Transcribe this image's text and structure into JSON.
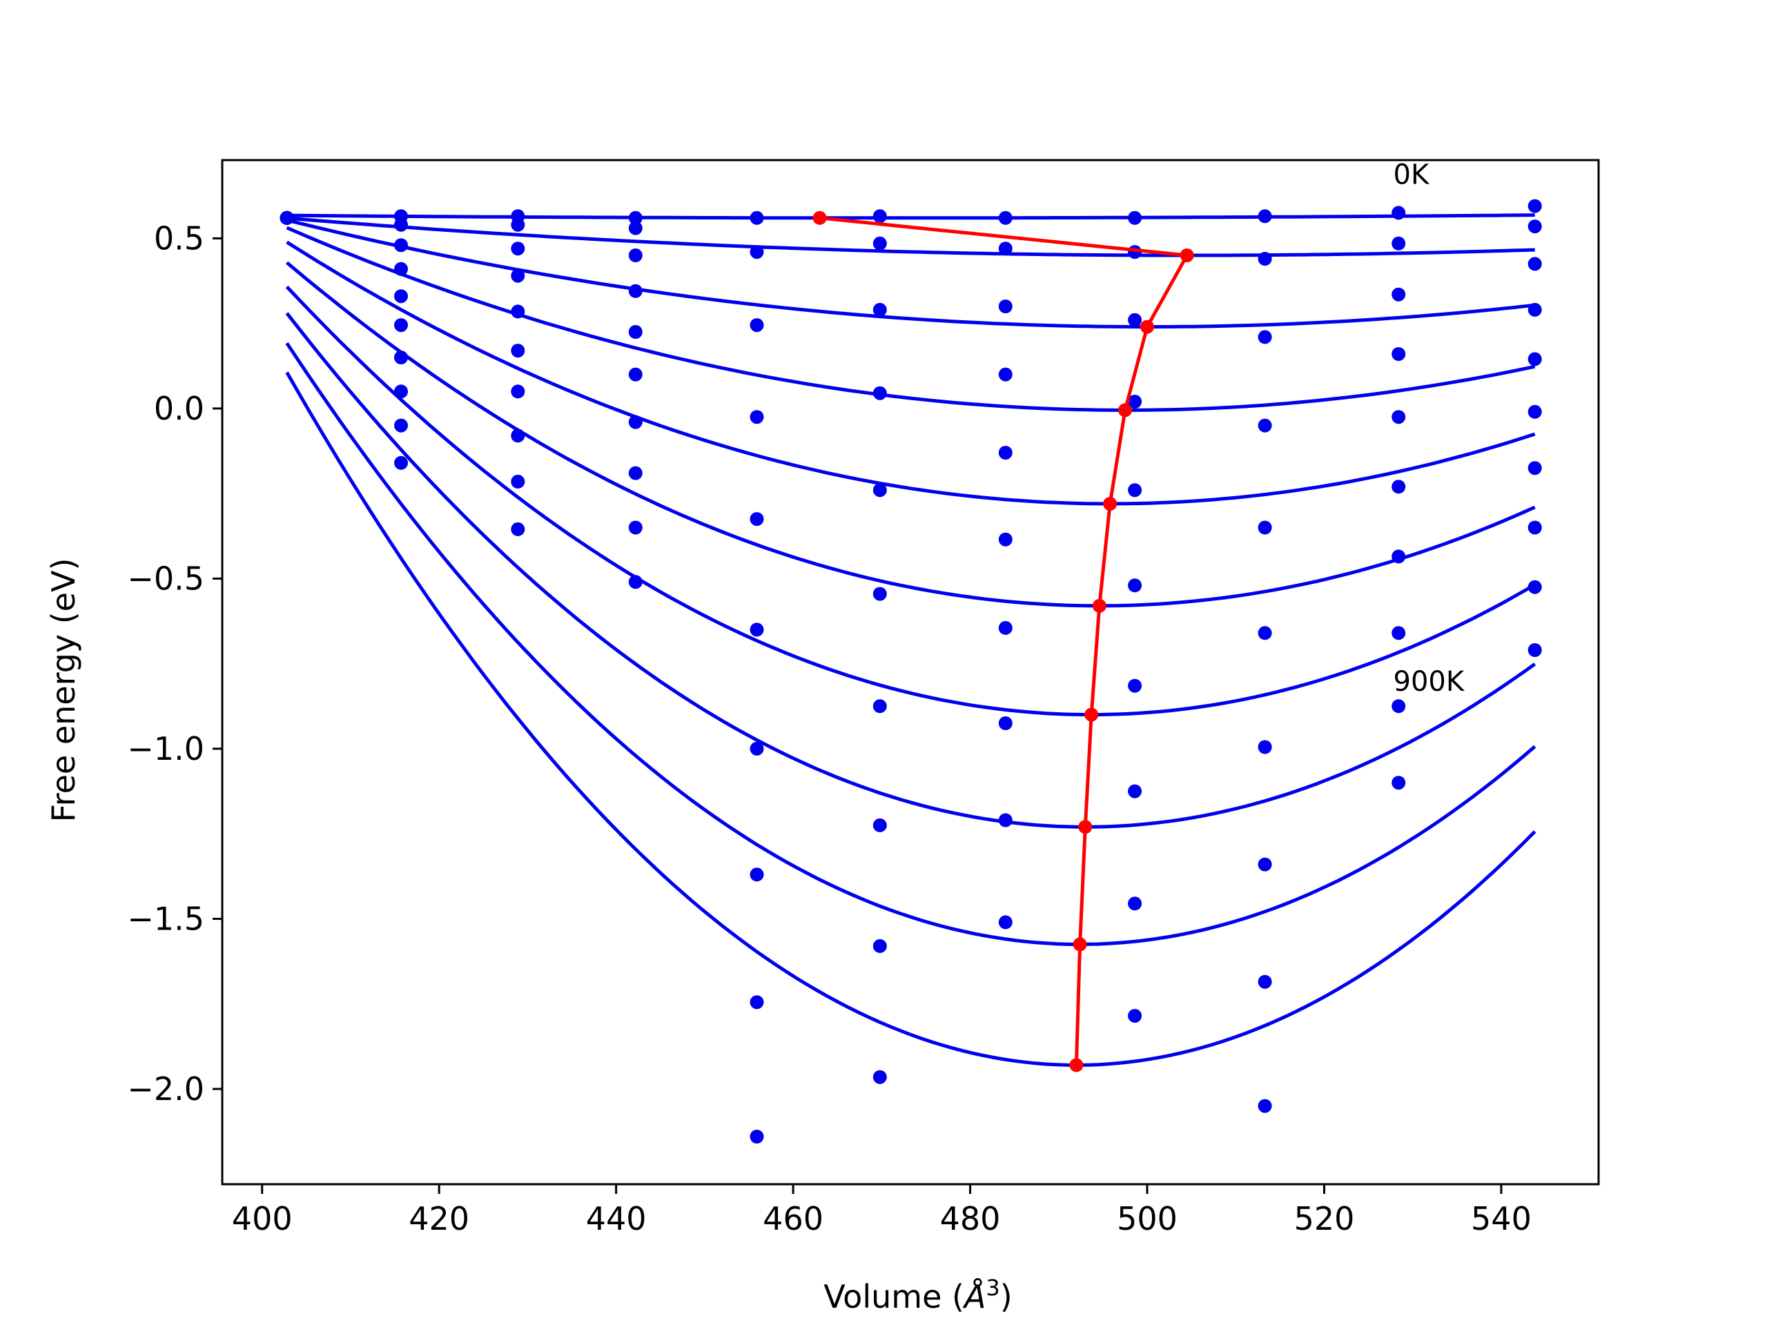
{
  "chart_data": {
    "type": "line",
    "title": "",
    "xlabel": "Volume (",
    "xlabel_symbol": "Å",
    "xlabel_sup": "3",
    "xlabel_close": ")",
    "ylabel": "Free energy (eV)",
    "xlim": [
      395.5,
      551
    ],
    "ylim": [
      -2.28,
      0.73
    ],
    "xticks": [
      400,
      420,
      440,
      460,
      480,
      500,
      520,
      540
    ],
    "xtick_labels": [
      "400",
      "420",
      "440",
      "460",
      "480",
      "500",
      "520",
      "540"
    ],
    "yticks": [
      0.5,
      0.0,
      -0.5,
      -1.0,
      -1.5,
      -2.0
    ],
    "ytick_labels": [
      "0.5",
      "0.0",
      "−0.5",
      "−1.0",
      "−1.5",
      "−2.0"
    ],
    "grid": false,
    "curve_color": "#0000ee",
    "point_color": "#0000ee",
    "min_line_color": "#ff0000",
    "volumes": [
      402.8,
      415.7,
      428.9,
      442.2,
      455.9,
      469.8,
      484.0,
      498.6,
      513.3,
      528.4,
      543.8
    ],
    "series": [
      {
        "values": [
          0.56,
          0.565,
          0.565,
          0.56,
          0.56,
          0.565,
          0.56,
          0.56,
          0.565,
          0.575,
          0.595
        ]
      },
      {
        "values": [
          0.56,
          0.54,
          0.54,
          0.53,
          0.46,
          0.485,
          0.47,
          0.46,
          0.44,
          0.485,
          0.535
        ]
      },
      {
        "values": [
          0.56,
          0.48,
          0.47,
          0.45,
          0.245,
          0.29,
          0.3,
          0.26,
          0.21,
          0.335,
          0.425
        ]
      },
      {
        "values": [
          0.56,
          0.41,
          0.39,
          0.345,
          -0.025,
          0.045,
          0.1,
          0.02,
          -0.05,
          0.16,
          0.29
        ]
      },
      {
        "values": [
          0.56,
          0.33,
          0.285,
          0.225,
          -0.325,
          -0.24,
          -0.13,
          -0.24,
          -0.35,
          -0.025,
          0.145
        ]
      },
      {
        "values": [
          0.56,
          0.245,
          0.17,
          0.1,
          -0.65,
          -0.545,
          -0.385,
          -0.52,
          -0.66,
          -0.23,
          -0.01
        ]
      },
      {
        "values": [
          0.56,
          0.15,
          0.05,
          -0.04,
          -1.0,
          -0.875,
          -0.645,
          -0.815,
          -0.995,
          -0.435,
          -0.175
        ]
      },
      {
        "values": [
          0.56,
          0.05,
          -0.08,
          -0.19,
          -1.37,
          -1.225,
          -0.925,
          -1.125,
          -1.34,
          -0.66,
          -0.35
        ]
      },
      {
        "values": [
          0.56,
          -0.05,
          -0.215,
          -0.35,
          -1.745,
          -1.58,
          -1.21,
          -1.455,
          -1.685,
          -0.875,
          -0.525
        ]
      },
      {
        "values": [
          0.56,
          -0.16,
          -0.355,
          -0.51,
          -2.14,
          -1.965,
          -1.51,
          -1.785,
          -2.05,
          -1.1,
          -0.71
        ]
      }
    ],
    "fits": [
      {
        "v0": 471.0,
        "e0": 0.56,
        "a": 0.0
      },
      {
        "v0": 504.5,
        "e0": 0.45,
        "a": 1.06e-05
      },
      {
        "v0": 500.0,
        "e0": 0.24,
        "a": 3.32e-05
      },
      {
        "v0": 497.5,
        "e0": -0.005,
        "a": 5.98e-05
      },
      {
        "v0": 495.8,
        "e0": -0.28,
        "a": 8.89e-05
      },
      {
        "v0": 494.6,
        "e0": -0.58,
        "a": 0.0001197
      },
      {
        "v0": 493.7,
        "e0": -0.9,
        "a": 0.0001522
      },
      {
        "v0": 493.0,
        "e0": -1.23,
        "a": 0.0001856
      },
      {
        "v0": 492.4,
        "e0": -1.575,
        "a": 0.0002201
      },
      {
        "v0": 492.0,
        "e0": -1.93,
        "a": 0.0002559
      }
    ],
    "minimum_path": {
      "x": [
        463.0,
        504.5,
        500.0,
        497.5,
        495.8,
        494.6,
        493.7,
        493.0,
        492.4,
        492.0
      ],
      "y": [
        0.56,
        0.45,
        0.24,
        -0.005,
        -0.28,
        -0.58,
        -0.9,
        -1.23,
        -1.575,
        -1.93
      ]
    },
    "annotations": [
      {
        "text": "0K",
        "x": 527.8,
        "y": 0.66
      },
      {
        "text": "900K",
        "x": 527.8,
        "y": -0.83
      }
    ]
  }
}
